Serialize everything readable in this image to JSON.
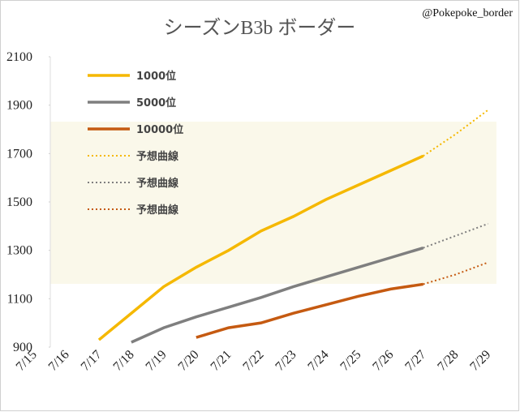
{
  "chart_data": {
    "type": "line",
    "title": "シーズンB3b ボーダー",
    "credit": "@Pokepoke_border",
    "categories": [
      "7/15",
      "7/16",
      "7/17",
      "7/18",
      "7/19",
      "7/20",
      "7/21",
      "7/22",
      "7/23",
      "7/24",
      "7/25",
      "7/26",
      "7/27",
      "7/28",
      "7/29"
    ],
    "ylim": [
      900,
      2100
    ],
    "yticks": [
      900,
      1100,
      1300,
      1500,
      1700,
      1900,
      2100
    ],
    "series": [
      {
        "name": "1000位",
        "color": "#f5b800",
        "style": "solid",
        "values": [
          null,
          null,
          930,
          1040,
          1150,
          1230,
          1300,
          1380,
          1440,
          1510,
          1570,
          1630,
          1690,
          null,
          null
        ]
      },
      {
        "name": "5000位",
        "color": "#7f7f7f",
        "style": "solid",
        "values": [
          null,
          null,
          null,
          920,
          980,
          1025,
          1065,
          1105,
          1150,
          1190,
          1230,
          1270,
          1310,
          null,
          null
        ]
      },
      {
        "name": "10000位",
        "color": "#c55a11",
        "style": "solid",
        "values": [
          null,
          null,
          null,
          null,
          null,
          940,
          980,
          1000,
          1040,
          1075,
          1110,
          1140,
          1160,
          null,
          null
        ]
      },
      {
        "name": "予想曲線",
        "color": "#f5b800",
        "style": "dotted",
        "values": [
          null,
          null,
          null,
          null,
          null,
          null,
          null,
          null,
          null,
          null,
          null,
          null,
          1690,
          1780,
          1880
        ]
      },
      {
        "name": "予想曲線",
        "color": "#7f7f7f",
        "style": "dotted",
        "values": [
          null,
          null,
          null,
          null,
          null,
          null,
          null,
          null,
          null,
          null,
          null,
          null,
          1310,
          1360,
          1410
        ]
      },
      {
        "name": "予想曲線",
        "color": "#c55a11",
        "style": "dotted",
        "values": [
          null,
          null,
          null,
          null,
          null,
          null,
          null,
          null,
          null,
          null,
          null,
          null,
          1160,
          1200,
          1250
        ]
      }
    ]
  }
}
